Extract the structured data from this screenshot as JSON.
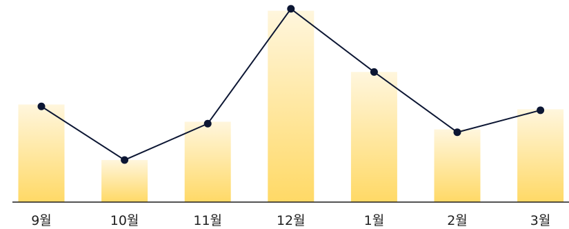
{
  "chart_data": {
    "type": "bar",
    "categories": [
      "9월",
      "10월",
      "11월",
      "12월",
      "1월",
      "2월",
      "3월"
    ],
    "series": [
      {
        "kind": "bar",
        "values": [
          51,
          22,
          42,
          100,
          68,
          38,
          48.5
        ],
        "colors": {
          "top": "#fff6dd",
          "bottom": "#ffd966"
        }
      },
      {
        "kind": "line",
        "values": [
          50,
          22,
          41,
          101,
          68,
          36.5,
          48
        ],
        "colors": {
          "line": "#0c1633",
          "marker": "#0c1633"
        }
      }
    ],
    "ylim": [
      0,
      102
    ],
    "grid": false,
    "legend": "none",
    "axis_color": "#1a1a1a"
  }
}
